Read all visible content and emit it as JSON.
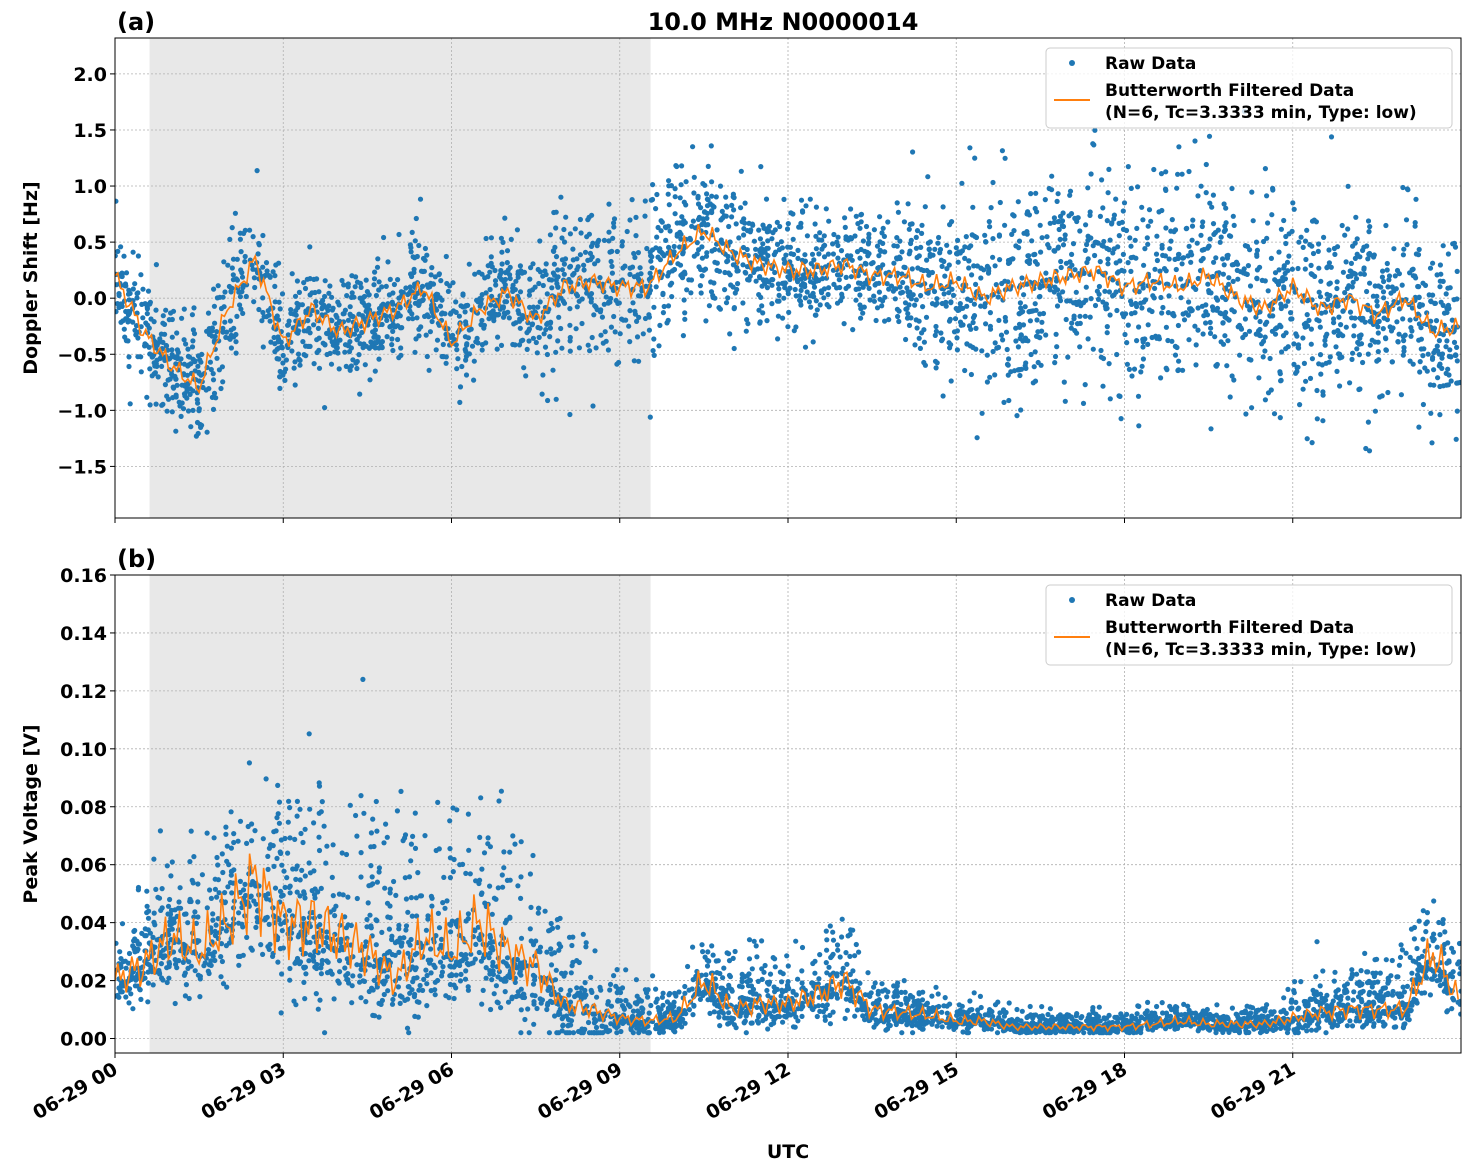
{
  "chart_data": [
    {
      "type": "scatter",
      "panel_label": "(a)",
      "title": "10.0 MHz N0000014",
      "ylabel": "Doppler Shift [Hz]",
      "xlabel": "",
      "xlim_hours": [
        0,
        24
      ],
      "ylim": [
        -1.96,
        2.32
      ],
      "yticks": [
        -1.5,
        -1.0,
        -0.5,
        0.0,
        0.5,
        1.0,
        1.5,
        2.0
      ],
      "ytick_labels": [
        "−1.5",
        "−1.0",
        "−0.5",
        "0.0",
        "0.5",
        "1.0",
        "1.5",
        "2.0"
      ],
      "grid": true,
      "legend_placement": "top-right",
      "legend": [
        "Raw Data",
        "Butterworth Filtered Data",
        "(N=6, Tc=3.3333 min, Type: low)"
      ],
      "shaded_region_utc": [
        "06-29 00:37",
        "06-29 09:33"
      ],
      "colors": {
        "raw": "#1f77b4",
        "filtered": "#ff7f0e",
        "shade": "#e8e8e8"
      },
      "filtered_hours_step": 0.5,
      "filtered": [
        0.2,
        -0.3,
        -0.6,
        -0.8,
        -0.1,
        0.35,
        -0.4,
        -0.1,
        -0.3,
        -0.2,
        -0.1,
        0.1,
        -0.4,
        -0.1,
        0.05,
        -0.2,
        0.1,
        0.15,
        0.1,
        0.1,
        0.4,
        0.6,
        0.4,
        0.3,
        0.25,
        0.25,
        0.3,
        0.2,
        0.2,
        0.1,
        0.15,
        0.0,
        0.1,
        0.15,
        0.2,
        0.25,
        0.1,
        0.15,
        0.1,
        0.2,
        0.0,
        -0.1,
        0.1,
        -0.1,
        0.0,
        -0.15,
        0.0,
        -0.3,
        -0.25
      ],
      "raw_spread_hourly": [
        0.25,
        0.25,
        0.3,
        0.25,
        0.25,
        0.25,
        0.25,
        0.25,
        0.3,
        0.35,
        0.35,
        0.3,
        0.25,
        0.25,
        0.3,
        0.4,
        0.5,
        0.5,
        0.5,
        0.5,
        0.45,
        0.4,
        0.35,
        0.3,
        0.3
      ]
    },
    {
      "type": "scatter",
      "panel_label": "(b)",
      "title": "",
      "ylabel": "Peak Voltage [V]",
      "xlabel": "UTC",
      "xlim_hours": [
        0,
        24
      ],
      "ylim": [
        -0.005,
        0.16
      ],
      "yticks": [
        0.0,
        0.02,
        0.04,
        0.06,
        0.08,
        0.1,
        0.12,
        0.14,
        0.16
      ],
      "ytick_labels": [
        "0.00",
        "0.02",
        "0.04",
        "0.06",
        "0.08",
        "0.10",
        "0.12",
        "0.14",
        "0.16"
      ],
      "xtick_labels": [
        "06-29 00",
        "06-29 03",
        "06-29 06",
        "06-29 09",
        "06-29 12",
        "06-29 15",
        "06-29 18",
        "06-29 21"
      ],
      "grid": true,
      "legend_placement": "top-right",
      "legend": [
        "Raw Data",
        "Butterworth Filtered Data",
        "(N=6, Tc=3.3333 min, Type: low)"
      ],
      "shaded_region_utc": [
        "06-29 00:37",
        "06-29 09:33"
      ],
      "colors": {
        "raw": "#1f77b4",
        "filtered": "#ff7f0e",
        "shade": "#e8e8e8"
      },
      "filtered_hours_step": 0.5,
      "filtered": [
        0.02,
        0.025,
        0.035,
        0.03,
        0.04,
        0.055,
        0.04,
        0.04,
        0.035,
        0.03,
        0.02,
        0.035,
        0.03,
        0.04,
        0.03,
        0.025,
        0.012,
        0.01,
        0.007,
        0.006,
        0.007,
        0.02,
        0.01,
        0.012,
        0.012,
        0.015,
        0.02,
        0.01,
        0.009,
        0.008,
        0.006,
        0.006,
        0.004,
        0.004,
        0.004,
        0.004,
        0.004,
        0.005,
        0.006,
        0.005,
        0.005,
        0.005,
        0.007,
        0.009,
        0.01,
        0.01,
        0.01,
        0.03,
        0.012
      ],
      "raw_spread_hourly": [
        0.008,
        0.012,
        0.015,
        0.02,
        0.02,
        0.02,
        0.018,
        0.02,
        0.012,
        0.006,
        0.004,
        0.008,
        0.006,
        0.008,
        0.004,
        0.003,
        0.002,
        0.002,
        0.002,
        0.002,
        0.002,
        0.004,
        0.005,
        0.008,
        0.008
      ]
    }
  ]
}
